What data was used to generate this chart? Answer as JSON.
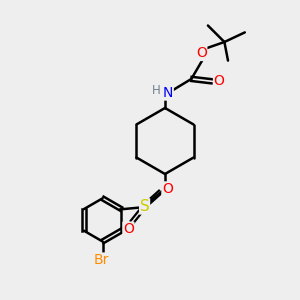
{
  "background_color": "#eeeeee",
  "atom_colors": {
    "C": "#000000",
    "H": "#708090",
    "N": "#0000FF",
    "O": "#FF0000",
    "S": "#CCCC00",
    "Br": "#FF8C00"
  },
  "bond_color": "#000000",
  "bond_width": 1.8,
  "font_size_atoms": 9,
  "font_size_labels": 8
}
